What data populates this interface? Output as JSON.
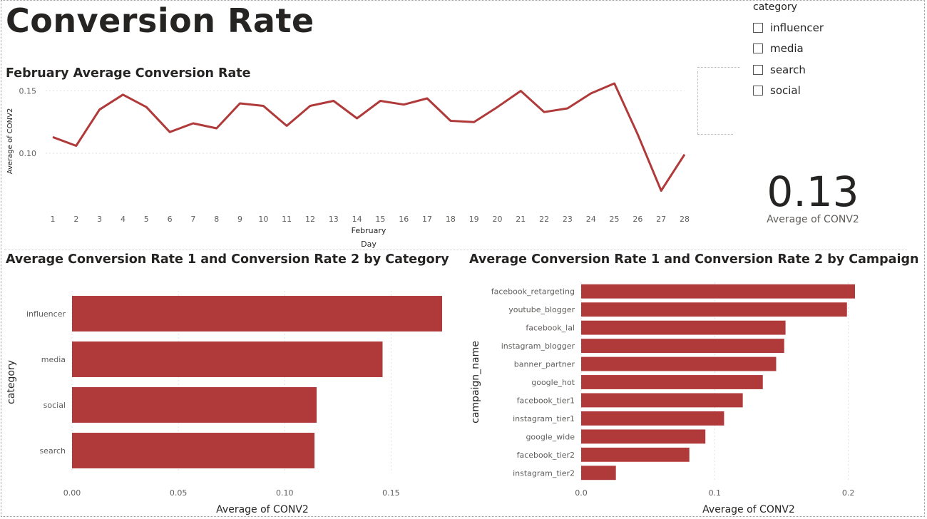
{
  "page": {
    "title": "Conversion Rate"
  },
  "colors": {
    "bar": "#B03A3A",
    "line": "#B03A3A",
    "grid": "#e1e1e1"
  },
  "slicer": {
    "title": "category",
    "items": [
      {
        "label": "influencer",
        "checked": false
      },
      {
        "label": "media",
        "checked": false
      },
      {
        "label": "search",
        "checked": false
      },
      {
        "label": "social",
        "checked": false
      }
    ]
  },
  "kpi": {
    "value": "0.13",
    "label": "Average of CONV2"
  },
  "chart_data": [
    {
      "type": "line",
      "title": "February Average Conversion Rate",
      "xlabel": "Day",
      "x_group_label": "February",
      "ylabel": "Average of CONV2",
      "x": [
        1,
        2,
        3,
        4,
        5,
        6,
        7,
        8,
        9,
        10,
        11,
        12,
        13,
        14,
        15,
        16,
        17,
        18,
        19,
        20,
        21,
        22,
        23,
        24,
        25,
        26,
        27,
        28
      ],
      "series": [
        {
          "values": [
            0.113,
            0.106,
            0.135,
            0.147,
            0.137,
            0.117,
            0.124,
            0.12,
            0.14,
            0.138,
            0.122,
            0.138,
            0.142,
            0.128,
            0.142,
            0.139,
            0.144,
            0.126,
            0.125,
            0.137,
            0.15,
            0.133,
            0.136,
            0.148,
            0.156,
            0.115,
            0.07,
            0.099
          ]
        }
      ],
      "yticks": [
        "0.10",
        "0.15"
      ],
      "ylim": [
        0.06,
        0.16
      ],
      "grid": true
    },
    {
      "type": "bar",
      "orientation": "horizontal",
      "title": "Average Conversion Rate 1 and Conversion Rate 2 by Category",
      "categories": [
        "influencer",
        "media",
        "social",
        "search"
      ],
      "values": [
        0.174,
        0.146,
        0.115,
        0.114
      ],
      "xlabel": "Average of CONV2",
      "ylabel": "category",
      "xticks": [
        "0.00",
        "0.05",
        "0.10",
        "0.15"
      ],
      "xlim": [
        0,
        0.175
      ],
      "grid": true
    },
    {
      "type": "bar",
      "orientation": "horizontal",
      "title": "Average Conversion Rate 1 and Conversion Rate 2 by Campaign",
      "categories": [
        "facebook_retargeting",
        "youtube_blogger",
        "facebook_lal",
        "instagram_blogger",
        "banner_partner",
        "google_hot",
        "facebook_tier1",
        "instagram_tier1",
        "google_wide",
        "facebook_tier2",
        "instagram_tier2"
      ],
      "values": [
        0.205,
        0.199,
        0.153,
        0.152,
        0.146,
        0.136,
        0.121,
        0.107,
        0.093,
        0.081,
        0.026
      ],
      "xlabel": "Average of CONV2",
      "ylabel": "campaign_name",
      "xticks": [
        "0.0",
        "0.1",
        "0.2"
      ],
      "xlim": [
        0,
        0.205
      ],
      "grid": true
    }
  ]
}
